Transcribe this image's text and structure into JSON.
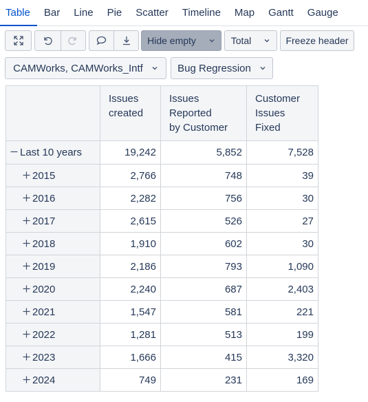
{
  "tabs": [
    {
      "label": "Table",
      "active": true
    },
    {
      "label": "Bar"
    },
    {
      "label": "Line"
    },
    {
      "label": "Pie"
    },
    {
      "label": "Scatter"
    },
    {
      "label": "Timeline"
    },
    {
      "label": "Map"
    },
    {
      "label": "Gantt"
    },
    {
      "label": "Gauge"
    }
  ],
  "toolbar": {
    "icons": [
      "fullscreen-icon",
      "undo-icon",
      "redo-icon",
      "comment-icon",
      "download-icon"
    ],
    "hide_empty_label": "Hide empty",
    "total_label": "Total",
    "freeze_header_label": "Freeze header"
  },
  "filters": {
    "project_label": "CAMWorks, CAMWorks_Intf",
    "measure_label": "Bug Regression"
  },
  "table": {
    "columns": [
      "Issues\ncreated",
      "Issues\nReported\nby Customer",
      "Customer\nIssues\nFixed"
    ],
    "total": {
      "label": "Last 10 years",
      "values": [
        "19,242",
        "5,852",
        "7,528"
      ]
    },
    "rows": [
      {
        "label": "2015",
        "values": [
          "2,766",
          "748",
          "39"
        ]
      },
      {
        "label": "2016",
        "values": [
          "2,282",
          "756",
          "30"
        ]
      },
      {
        "label": "2017",
        "values": [
          "2,615",
          "526",
          "27"
        ]
      },
      {
        "label": "2018",
        "values": [
          "1,910",
          "602",
          "30"
        ]
      },
      {
        "label": "2019",
        "values": [
          "2,186",
          "793",
          "1,090"
        ]
      },
      {
        "label": "2020",
        "values": [
          "2,240",
          "687",
          "2,403"
        ]
      },
      {
        "label": "2021",
        "values": [
          "1,547",
          "581",
          "221"
        ]
      },
      {
        "label": "2022",
        "values": [
          "1,281",
          "513",
          "199"
        ]
      },
      {
        "label": "2023",
        "values": [
          "1,666",
          "415",
          "3,320"
        ]
      },
      {
        "label": "2024",
        "values": [
          "749",
          "231",
          "169"
        ]
      }
    ]
  },
  "colors": {
    "accent": "#0052cc",
    "header_bg": "#f4f5f7",
    "active_button": "#a5adba"
  }
}
